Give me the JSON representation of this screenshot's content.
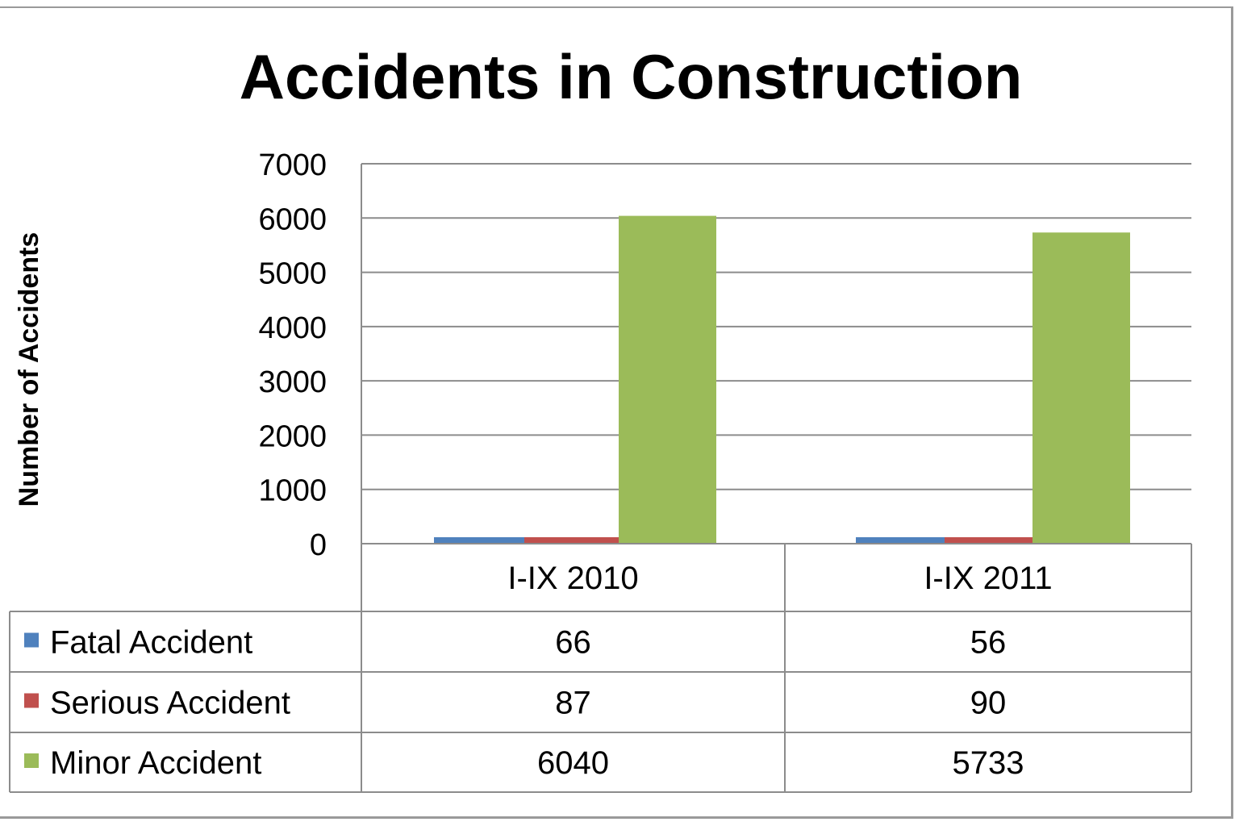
{
  "chart_data": {
    "type": "bar",
    "title": "Accidents in Construction",
    "ylabel": "Number of Accidents",
    "xlabel": "",
    "categories": [
      "I-IX 2010",
      "I-IX 2011"
    ],
    "series": [
      {
        "name": "Fatal Accident",
        "values": [
          66,
          56
        ],
        "color": "#4f81bd"
      },
      {
        "name": "Serious Accident",
        "values": [
          87,
          90
        ],
        "color": "#c0504d"
      },
      {
        "name": "Minor Accident",
        "values": [
          6040,
          5733
        ],
        "color": "#9bbb59"
      }
    ],
    "ylim": [
      0,
      7000
    ],
    "yticks": [
      "0",
      "1000",
      "2000",
      "3000",
      "4000",
      "5000",
      "6000",
      "7000"
    ],
    "grid": true,
    "legend": "data-table-below",
    "data_table": true
  }
}
